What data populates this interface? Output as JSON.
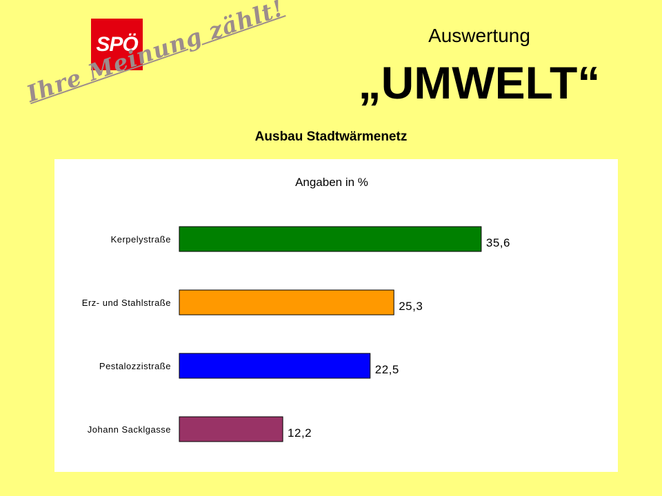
{
  "logo": {
    "text": "SPÖ"
  },
  "slogan": "Ihre Meinung zählt!",
  "header": {
    "pretitle": "Auswertung",
    "title": "„UMWELT“",
    "subtitle": "Ausbau Stadtwärmenetz"
  },
  "colors": {
    "background": "#ffff80",
    "logo": "#e3000f"
  },
  "chart_data": {
    "type": "bar",
    "orientation": "horizontal",
    "title": "Angaben in %",
    "categories": [
      "Kerpelystraße",
      "Erz- und Stahlstraße",
      "Pestalozzistraße",
      "Johann Sacklgasse"
    ],
    "values": [
      35.6,
      25.3,
      22.5,
      12.2
    ],
    "colors": [
      "#008000",
      "#ff9900",
      "#0000ff",
      "#993366"
    ],
    "xlim": [
      0,
      40
    ],
    "grid": false,
    "legend": "none"
  }
}
